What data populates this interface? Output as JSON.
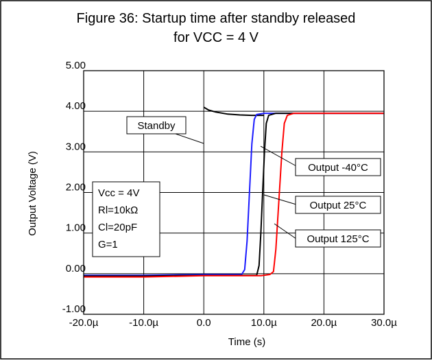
{
  "chart_data": {
    "type": "line",
    "title": "Figure 36: Startup time after standby released",
    "subtitle": "for VCC = 4 V",
    "xlabel": "Time (s)",
    "ylabel": "Output Voltage (V)",
    "xlim": [
      -20,
      30
    ],
    "ylim": [
      -1,
      5
    ],
    "x_unit_note": "time in microseconds",
    "x_ticks": [
      -20,
      -10,
      0,
      10,
      20,
      30
    ],
    "x_tick_labels": [
      "-20.0µ",
      "-10.0µ",
      "0.0",
      "10.0µ",
      "20.0µ",
      "30.0µ"
    ],
    "y_ticks": [
      -1,
      0,
      1,
      2,
      3,
      4,
      5
    ],
    "y_tick_labels": [
      "-1.00",
      "0.00",
      "1.00",
      "2.00",
      "3.00",
      "4.00",
      "5.00"
    ],
    "grid": true,
    "series": [
      {
        "name": "Standby",
        "color": "#000000",
        "points": [
          [
            0,
            4.1
          ],
          [
            0.8,
            4.03
          ],
          [
            2,
            3.98
          ],
          [
            4,
            3.93
          ],
          [
            6,
            3.91
          ],
          [
            8,
            3.9
          ],
          [
            10,
            3.9
          ]
        ]
      },
      {
        "name": "Output -40°C",
        "color": "#1a1aff",
        "points": [
          [
            -20,
            -0.04
          ],
          [
            -10,
            -0.04
          ],
          [
            0,
            -0.02
          ],
          [
            6.3,
            -0.02
          ],
          [
            6.8,
            0.1
          ],
          [
            7.2,
            0.8
          ],
          [
            7.6,
            2.0
          ],
          [
            8.0,
            3.2
          ],
          [
            8.4,
            3.8
          ],
          [
            8.8,
            3.92
          ],
          [
            10,
            3.95
          ],
          [
            20,
            3.95
          ],
          [
            30,
            3.95
          ]
        ]
      },
      {
        "name": "Output 25°C",
        "color": "#000000",
        "points": [
          [
            -20,
            -0.06
          ],
          [
            -10,
            -0.06
          ],
          [
            0,
            -0.04
          ],
          [
            8.8,
            -0.04
          ],
          [
            9.2,
            0.2
          ],
          [
            9.5,
            1.0
          ],
          [
            9.8,
            2.0
          ],
          [
            10.1,
            3.0
          ],
          [
            10.4,
            3.7
          ],
          [
            10.8,
            3.9
          ],
          [
            12,
            3.95
          ],
          [
            20,
            3.95
          ],
          [
            30,
            3.95
          ]
        ]
      },
      {
        "name": "Output 125°C",
        "color": "#ff0000",
        "points": [
          [
            -20,
            -0.08
          ],
          [
            -10,
            -0.08
          ],
          [
            0,
            -0.05
          ],
          [
            9.5,
            -0.05
          ],
          [
            11,
            -0.02
          ],
          [
            11.6,
            0.05
          ],
          [
            12.0,
            0.6
          ],
          [
            12.5,
            1.8
          ],
          [
            13.0,
            3.0
          ],
          [
            13.4,
            3.7
          ],
          [
            13.9,
            3.9
          ],
          [
            15,
            3.95
          ],
          [
            20,
            3.95
          ],
          [
            30,
            3.95
          ]
        ]
      }
    ],
    "annotations": {
      "standby": "Standby",
      "out_m40": "Output -40°C",
      "out_25": "Output 25°C",
      "out_125": "Output 125°C",
      "conditions": [
        "Vcc = 4V",
        "Rl=10kΩ",
        "Cl=20pF",
        "G=1"
      ]
    }
  }
}
